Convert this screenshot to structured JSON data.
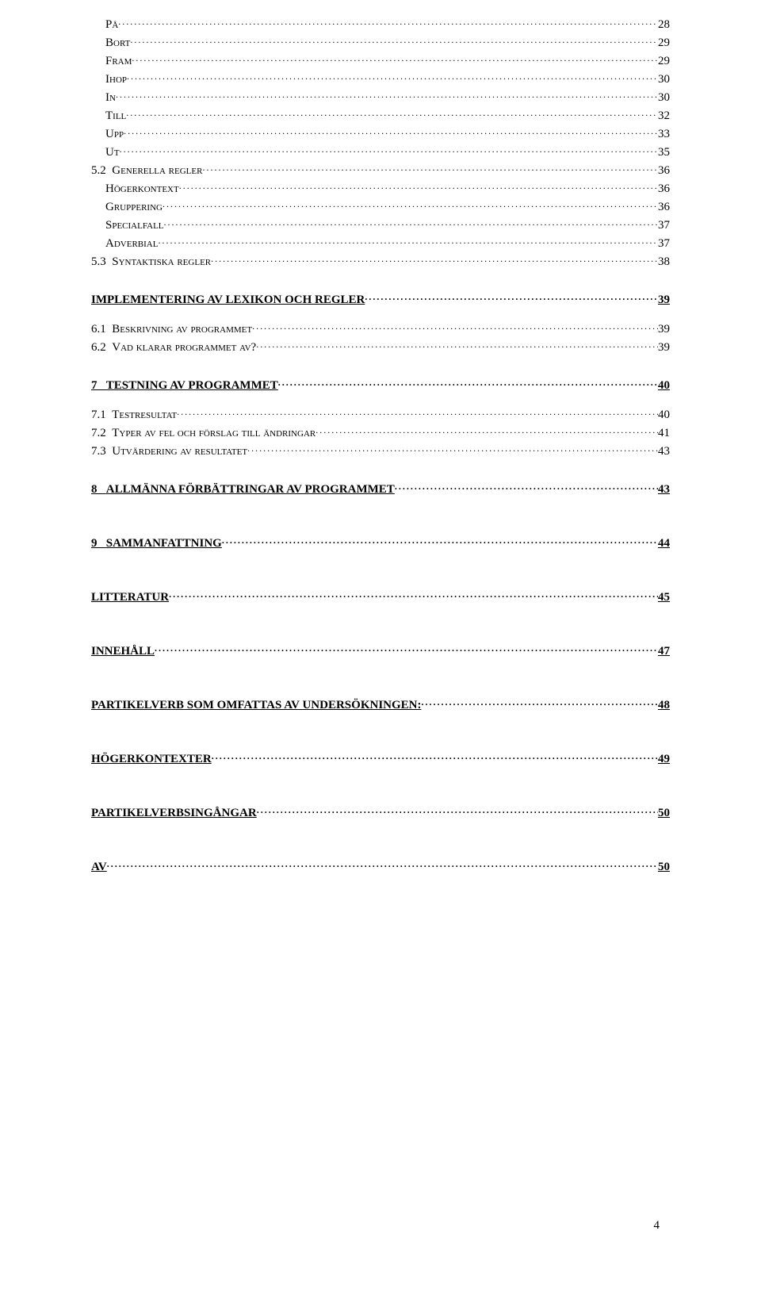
{
  "page_number": "4",
  "entries": [
    {
      "type": "sub",
      "indent": 1,
      "label": "På",
      "page": "28"
    },
    {
      "type": "sub",
      "indent": 1,
      "label": "Bort",
      "page": "29"
    },
    {
      "type": "sub",
      "indent": 1,
      "label": "Fram",
      "page": "29"
    },
    {
      "type": "sub",
      "indent": 1,
      "label": "Ihop",
      "page": "30"
    },
    {
      "type": "sub",
      "indent": 1,
      "label": "In",
      "page": "30"
    },
    {
      "type": "sub",
      "indent": 1,
      "label": "Till",
      "page": "32"
    },
    {
      "type": "sub",
      "indent": 1,
      "label": "Upp",
      "page": "33"
    },
    {
      "type": "sub",
      "indent": 1,
      "label": "Ut",
      "page": "35"
    },
    {
      "type": "num",
      "indent": 0,
      "num": "5.2",
      "label": "Generella regler",
      "page": "36"
    },
    {
      "type": "sub",
      "indent": 1,
      "label": "Högerkontext",
      "page": "36"
    },
    {
      "type": "sub",
      "indent": 1,
      "label": "Gruppering",
      "page": "36"
    },
    {
      "type": "sub",
      "indent": 1,
      "label": "Specialfall",
      "page": "37"
    },
    {
      "type": "sub",
      "indent": 1,
      "label": "Adverbial",
      "page": "37"
    },
    {
      "type": "num",
      "indent": 0,
      "num": "5.3",
      "label": "Syntaktiska regler",
      "page": "38"
    },
    {
      "type": "section",
      "label": "IMPLEMENTERING AV LEXIKON OCH REGLER",
      "page": "39"
    },
    {
      "type": "gap-small"
    },
    {
      "type": "num",
      "indent": 0,
      "num": "6.1",
      "label": "Beskrivning av programmet",
      "page": "39"
    },
    {
      "type": "num",
      "indent": 0,
      "num": "6.2",
      "label": "Vad klarar programmet av?",
      "page": "39"
    },
    {
      "type": "section",
      "num": "7",
      "label": "TESTNING AV PROGRAMMET",
      "page": "40"
    },
    {
      "type": "gap-small"
    },
    {
      "type": "num",
      "indent": 0,
      "num": "7.1",
      "label": "Testresultat",
      "page": "40"
    },
    {
      "type": "num",
      "indent": 0,
      "num": "7.2",
      "label": "Typer av fel och förslag till ändringar",
      "page": "41"
    },
    {
      "type": "num",
      "indent": 0,
      "num": "7.3",
      "label": "Utvärdering av resultatet",
      "page": "43"
    },
    {
      "type": "section",
      "num": "8",
      "label": "ALLMÄNNA FÖRBÄTTRINGAR AV PROGRAMMET",
      "page": "43"
    },
    {
      "type": "top",
      "num": "9",
      "label": "SAMMANFATTNING",
      "page": "44"
    },
    {
      "type": "top",
      "label": "LITTERATUR",
      "page": "45"
    },
    {
      "type": "top",
      "label": "INNEHÅLL",
      "page": "47"
    },
    {
      "type": "top",
      "label": "PARTIKELVERB SOM OMFATTAS AV UNDERSÖKNINGEN:",
      "page": "48"
    },
    {
      "type": "top",
      "label": "HÖGERKONTEXTER",
      "page": "49"
    },
    {
      "type": "top",
      "label": "PARTIKELVERBSINGÅNGAR",
      "page": "50"
    },
    {
      "type": "top",
      "label": "AV",
      "page": "50"
    }
  ]
}
